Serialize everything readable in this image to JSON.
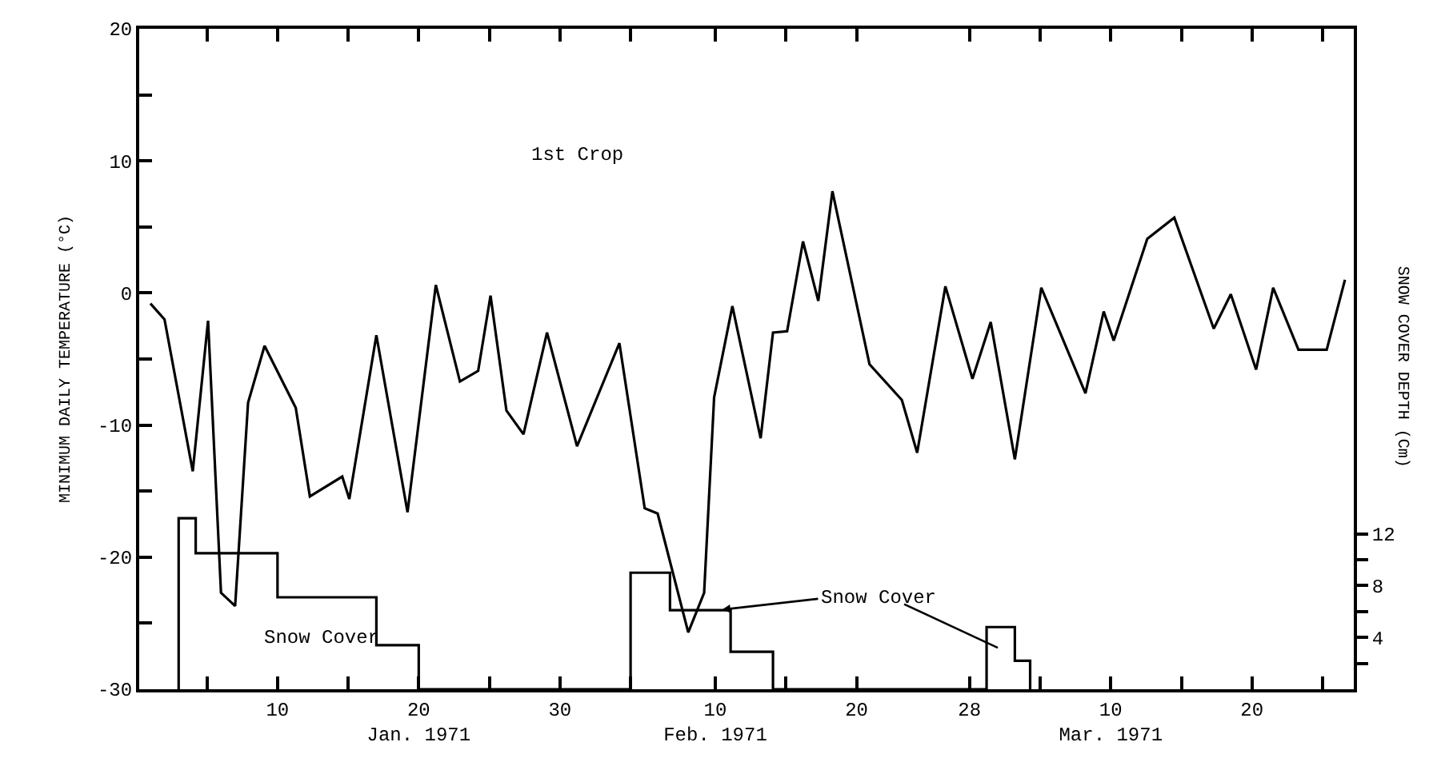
{
  "chart_data": {
    "type": "line",
    "ylabel": "MINIMUM DAILY TEMPERATURE (°C)",
    "y2label": "SNOW COVER DEPTH (Cm)",
    "annotations": [
      "1st Crop",
      "Snow Cover",
      {
        "text": "Snow Cover",
        "x": "1971-02-10T06:00",
        "y": -24
      }
    ],
    "xlim": [
      "1970-12-31T05:00",
      "1971-03-27T05:00"
    ],
    "xticks": [
      {
        "value": "1971-01-05",
        "label": null
      },
      {
        "value": "1971-01-10",
        "label": "10"
      },
      {
        "value": "1971-01-15",
        "label": null
      },
      {
        "value": "1971-01-20",
        "label": "20\nJan. 1971"
      },
      {
        "value": "1971-01-25",
        "label": null
      },
      {
        "value": "1971-01-30",
        "label": "30"
      },
      {
        "value": "1971-02-04",
        "label": null
      },
      {
        "value": "1971-02-10",
        "label": "10\nFeb. 1971"
      },
      {
        "value": "1971-02-15",
        "label": null
      },
      {
        "value": "1971-02-20",
        "label": "20"
      },
      {
        "value": "1971-02-28",
        "label": "28"
      },
      {
        "value": "1971-03-05",
        "label": null
      },
      {
        "value": "1971-03-10",
        "label": "10\nMar. 1971"
      },
      {
        "value": "1971-03-15",
        "label": null
      },
      {
        "value": "1971-03-20",
        "label": "20"
      },
      {
        "value": "1971-03-25",
        "label": null
      }
    ],
    "ylim": [
      -30,
      20
    ],
    "yticks": [
      -30,
      {
        "value": -25,
        "label": null
      },
      -20,
      {
        "value": -15,
        "label": null
      },
      -10,
      {
        "value": -5,
        "label": null
      },
      0,
      {
        "value": 5,
        "label": null
      },
      10,
      {
        "value": 15,
        "label": null
      },
      20
    ],
    "y2lim": [
      0,
      51
    ],
    "y2ticks": [
      {
        "value": 2,
        "label": null
      },
      4,
      {
        "value": 6,
        "label": null
      },
      8,
      {
        "value": 10,
        "label": null
      },
      12
    ],
    "marker": "none",
    "line_style": "solid",
    "series": [
      {
        "color": "#000000",
        "x": [
          "1971-01-01",
          "1971-01-02",
          "1971-01-04",
          "1971-01-05T02:00",
          "1971-01-06",
          "1971-01-07",
          "1971-01-07T22:00",
          "1971-01-09T02:00",
          "1971-01-11T07:00",
          "1971-01-12T07:00",
          "1971-01-14T14:00",
          "1971-01-15T02:00",
          "1971-01-17",
          "1971-01-19T05:00",
          "1971-01-21T05:00",
          "1971-01-22T22:00",
          "1971-01-24T05:00",
          "1971-01-25T02:00",
          "1971-01-26T05:00",
          "1971-01-27T10:00",
          "1971-01-29T02:00",
          "1971-01-31T05:00",
          "1971-02-03T05:00",
          "1971-02-05",
          "1971-02-05T22:00",
          "1971-02-08T02:00",
          "1971-02-09T05:00",
          "1971-02-09T22:00",
          "1971-02-11T05:00",
          "1971-02-13T05:00",
          "1971-02-14T02:00",
          "1971-02-15T02:00",
          "1971-02-16T05:00",
          "1971-02-17T07:00",
          "1971-02-18T07:00",
          "1971-02-20T22:00",
          "1971-02-23T05:00",
          "1971-02-24T07:00",
          "1971-02-26T07:00",
          "1971-02-28T05:00",
          "1971-03-01T12:00",
          "1971-03-03T05:00",
          "1971-03-05T02:00",
          "1971-03-08T05:00",
          "1971-03-09T12:00",
          "1971-03-10T05:00",
          "1971-03-12T14:00",
          "1971-03-14T12:00",
          "1971-03-17T07:00",
          "1971-03-18T12:00",
          "1971-03-20T07:00",
          "1971-03-21T12:00",
          "1971-03-23T07:00",
          "1971-03-25T07:00",
          "1971-03-26T14:00"
        ],
        "values": [
          -0.8,
          -2,
          -13.5,
          -2.1,
          -22.7,
          -23.7,
          -8.3,
          -4,
          -8.7,
          -15.4,
          -13.9,
          -15.6,
          -3.2,
          -16.6,
          0.6,
          -6.7,
          -5.9,
          -0.2,
          -8.9,
          -10.7,
          -3,
          -11.6,
          -3.8,
          -16.3,
          -16.7,
          -25.7,
          -22.7,
          -7.9,
          -1,
          -11,
          -3,
          -2.9,
          3.9,
          -0.6,
          7.7,
          -5.4,
          -8.1,
          -12.1,
          0.5,
          -6.5,
          -2.2,
          -12.6,
          0.4,
          -7.6,
          -1.4,
          -3.6,
          4.1,
          5.7,
          -2.7,
          -0.1,
          -5.8,
          0.4,
          -4.3,
          -4.3,
          1
        ]
      },
      {
        "type": "step",
        "axis": "y2",
        "color": "#000000",
        "x": [
          "1971-01-03",
          "1971-01-03",
          "1971-01-04T05:00",
          "1971-01-10",
          "1971-01-17",
          "1971-01-20",
          "1971-02-04",
          "1971-02-04",
          "1971-02-06T19:00",
          "1971-02-11T02:00",
          "1971-02-14T02:00",
          "1971-03-01T05:00",
          "1971-03-01T05:00",
          "1971-03-03T05:00",
          "1971-03-04T07:00"
        ],
        "values": [
          0,
          13.2,
          10.5,
          7.1,
          3.4,
          0,
          0,
          9,
          6.1,
          2.9,
          0,
          0,
          4.8,
          2.2,
          0
        ]
      }
    ]
  }
}
